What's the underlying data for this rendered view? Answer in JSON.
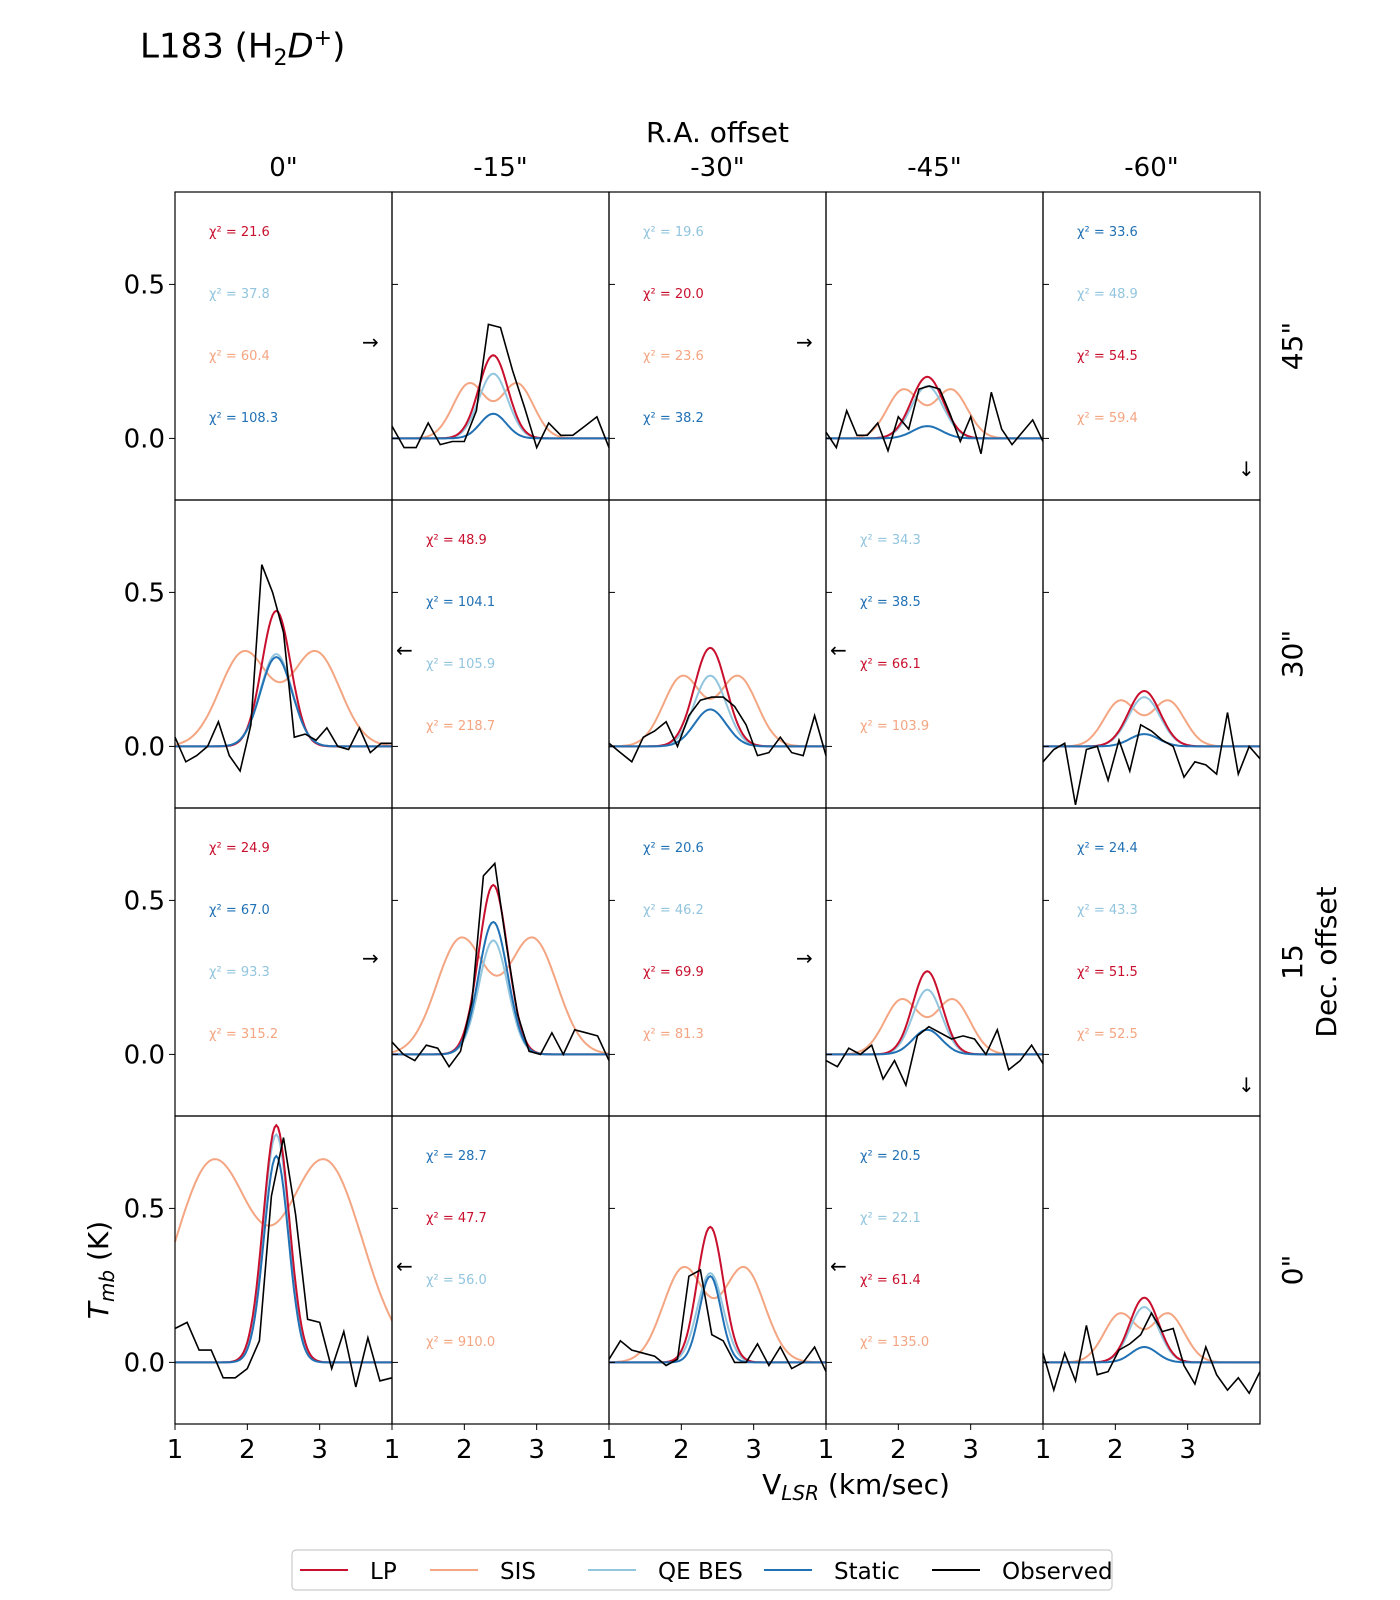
{
  "figure": {
    "title_base": "L183 (H",
    "title_sub": "2",
    "title_italic": "D",
    "title_sup": "+",
    "title_close": ")"
  },
  "chart_data": {
    "type": "line",
    "title": "L183 (H2D+)",
    "top_axis_title": "R.A. offset",
    "right_axis_title": "Dec. offset",
    "xlabel_main": "V",
    "xlabel_sub": "LSR",
    "xlabel_unit": " (km/sec)",
    "ylabel_main": "T",
    "ylabel_sub": "mb",
    "ylabel_unit": " (K)",
    "xlim": [
      1,
      4
    ],
    "ylim": [
      -0.2,
      0.8
    ],
    "xticks": [
      1,
      2,
      3
    ],
    "yticks": [
      0.0,
      0.5
    ],
    "ytick_labels": [
      "0.0",
      "0.5"
    ],
    "col_labels": [
      "0\"",
      "-15\"",
      "-30\"",
      "-45\"",
      "-60\""
    ],
    "row_labels": [
      "45\"",
      "30\"",
      "15",
      "0\""
    ],
    "chi_prefix": "χ² = ",
    "colors": {
      "LP": "#c8102e",
      "SIS": "#f4a582",
      "QE BES": "#92c5de",
      "Static": "#2171b5",
      "Observed": "#000000"
    },
    "legend": [
      "LP",
      "SIS",
      "QE BES",
      "Static",
      "Observed"
    ],
    "arrows": {
      "right": "→",
      "left": "←",
      "down": "↓"
    },
    "panels": [
      {
        "row": 0,
        "col": 0,
        "type": "chi",
        "chi": [
          [
            "LP",
            "21.6"
          ],
          [
            "QE BES",
            "37.8"
          ],
          [
            "SIS",
            "60.4"
          ],
          [
            "Static",
            "108.3"
          ]
        ],
        "arrow": "right"
      },
      {
        "row": 0,
        "col": 1,
        "type": "spec",
        "obs": [
          0.04,
          -0.03,
          -0.03,
          0.05,
          -0.02,
          -0.01,
          -0.01,
          0.09,
          0.37,
          0.36,
          0.22,
          0.1,
          -0.03,
          0.05,
          0.01,
          0.01,
          0.04,
          0.07,
          -0.03
        ],
        "fits": {
          "LP": {
            "amp": 0.27,
            "center": 2.4,
            "sigma": 0.2
          },
          "QE BES": {
            "amp": 0.21,
            "center": 2.4,
            "sigma": 0.2
          },
          "SIS": {
            "amp": 0.18,
            "center": 2.4,
            "sigma": 0.3,
            "double": true
          },
          "Static": {
            "amp": 0.08,
            "center": 2.4,
            "sigma": 0.18
          }
        }
      },
      {
        "row": 0,
        "col": 2,
        "type": "chi",
        "chi": [
          [
            "QE BES",
            "19.6"
          ],
          [
            "LP",
            "20.0"
          ],
          [
            "SIS",
            "23.6"
          ],
          [
            "Static",
            "38.2"
          ]
        ],
        "arrow": "right"
      },
      {
        "row": 0,
        "col": 3,
        "type": "spec",
        "obs": [
          0.02,
          -0.03,
          0.09,
          0.01,
          0.01,
          0.05,
          -0.04,
          0.07,
          0.03,
          0.16,
          0.17,
          0.16,
          0.08,
          -0.01,
          0.07,
          -0.05,
          0.15,
          0.03,
          -0.02,
          0.02,
          0.06,
          -0.01
        ],
        "fits": {
          "LP": {
            "amp": 0.2,
            "center": 2.4,
            "sigma": 0.22
          },
          "QE BES": {
            "amp": 0.17,
            "center": 2.4,
            "sigma": 0.22
          },
          "SIS": {
            "amp": 0.16,
            "center": 2.4,
            "sigma": 0.3,
            "double": true
          },
          "Static": {
            "amp": 0.04,
            "center": 2.4,
            "sigma": 0.2
          }
        }
      },
      {
        "row": 0,
        "col": 4,
        "type": "chi",
        "chi": [
          [
            "Static",
            "33.6"
          ],
          [
            "QE BES",
            "48.9"
          ],
          [
            "LP",
            "54.5"
          ],
          [
            "SIS",
            "59.4"
          ]
        ],
        "arrow": "down"
      },
      {
        "row": 1,
        "col": 0,
        "type": "spec",
        "obs": [
          0.03,
          -0.05,
          -0.03,
          0.0,
          0.08,
          -0.03,
          -0.08,
          0.07,
          0.59,
          0.5,
          0.37,
          0.03,
          0.04,
          0.02,
          0.06,
          0.0,
          -0.01,
          0.06,
          -0.02,
          0.01,
          0.01
        ],
        "fits": {
          "LP": {
            "amp": 0.44,
            "center": 2.4,
            "sigma": 0.2
          },
          "QE BES": {
            "amp": 0.3,
            "center": 2.4,
            "sigma": 0.22
          },
          "SIS": {
            "amp": 0.31,
            "center": 2.45,
            "sigma": 0.45,
            "double": true
          },
          "Static": {
            "amp": 0.29,
            "center": 2.4,
            "sigma": 0.22
          }
        }
      },
      {
        "row": 1,
        "col": 1,
        "type": "chi",
        "chi": [
          [
            "LP",
            "48.9"
          ],
          [
            "Static",
            "104.1"
          ],
          [
            "QE BES",
            "105.9"
          ],
          [
            "SIS",
            "218.7"
          ]
        ],
        "arrow": "left"
      },
      {
        "row": 1,
        "col": 2,
        "type": "spec",
        "obs": [
          0.01,
          -0.02,
          -0.05,
          0.03,
          0.05,
          0.08,
          0.0,
          0.1,
          0.15,
          0.16,
          0.16,
          0.13,
          0.07,
          -0.03,
          -0.02,
          0.03,
          -0.02,
          -0.03,
          0.1,
          -0.03
        ],
        "fits": {
          "LP": {
            "amp": 0.32,
            "center": 2.4,
            "sigma": 0.22
          },
          "QE BES": {
            "amp": 0.23,
            "center": 2.4,
            "sigma": 0.22
          },
          "SIS": {
            "amp": 0.23,
            "center": 2.4,
            "sigma": 0.35,
            "double": true
          },
          "Static": {
            "amp": 0.12,
            "center": 2.4,
            "sigma": 0.22
          }
        }
      },
      {
        "row": 1,
        "col": 3,
        "type": "chi",
        "chi": [
          [
            "QE BES",
            "34.3"
          ],
          [
            "Static",
            "38.5"
          ],
          [
            "LP",
            "66.1"
          ],
          [
            "SIS",
            "103.9"
          ]
        ],
        "arrow": "left"
      },
      {
        "row": 1,
        "col": 4,
        "type": "spec",
        "obs": [
          -0.05,
          -0.01,
          0.01,
          -0.19,
          -0.01,
          0.0,
          -0.11,
          0.02,
          -0.08,
          0.07,
          0.05,
          0.02,
          0.0,
          -0.1,
          -0.05,
          -0.06,
          -0.09,
          0.11,
          -0.09,
          0.0,
          -0.04
        ],
        "fits": {
          "LP": {
            "amp": 0.18,
            "center": 2.4,
            "sigma": 0.22
          },
          "QE BES": {
            "amp": 0.16,
            "center": 2.4,
            "sigma": 0.22
          },
          "SIS": {
            "amp": 0.15,
            "center": 2.4,
            "sigma": 0.3,
            "double": true
          },
          "Static": {
            "amp": 0.04,
            "center": 2.4,
            "sigma": 0.2
          }
        }
      },
      {
        "row": 2,
        "col": 0,
        "type": "chi",
        "chi": [
          [
            "LP",
            "24.9"
          ],
          [
            "Static",
            "67.0"
          ],
          [
            "QE BES",
            "93.3"
          ],
          [
            "SIS",
            "315.2"
          ]
        ],
        "arrow": "right"
      },
      {
        "row": 2,
        "col": 1,
        "type": "spec",
        "obs": [
          0.04,
          0.0,
          -0.02,
          0.03,
          0.02,
          -0.04,
          0.01,
          0.17,
          0.58,
          0.62,
          0.36,
          0.13,
          0.01,
          0.0,
          0.07,
          0.0,
          0.08,
          0.07,
          0.06,
          -0.02
        ],
        "fits": {
          "LP": {
            "amp": 0.55,
            "center": 2.4,
            "sigma": 0.2
          },
          "QE BES": {
            "amp": 0.37,
            "center": 2.4,
            "sigma": 0.2
          },
          "SIS": {
            "amp": 0.38,
            "center": 2.45,
            "sigma": 0.45,
            "double": true
          },
          "Static": {
            "amp": 0.43,
            "center": 2.4,
            "sigma": 0.2
          }
        }
      },
      {
        "row": 2,
        "col": 2,
        "type": "chi",
        "chi": [
          [
            "Static",
            "20.6"
          ],
          [
            "QE BES",
            "46.2"
          ],
          [
            "LP",
            "69.9"
          ],
          [
            "SIS",
            "81.3"
          ]
        ],
        "arrow": "right"
      },
      {
        "row": 2,
        "col": 3,
        "type": "spec",
        "obs": [
          -0.02,
          -0.04,
          0.02,
          0.0,
          0.03,
          -0.08,
          -0.02,
          -0.1,
          0.06,
          0.09,
          0.07,
          0.05,
          0.06,
          0.05,
          0.0,
          0.08,
          -0.05,
          -0.02,
          0.03,
          -0.03
        ],
        "fits": {
          "LP": {
            "amp": 0.27,
            "center": 2.4,
            "sigma": 0.2
          },
          "QE BES": {
            "amp": 0.21,
            "center": 2.4,
            "sigma": 0.2
          },
          "SIS": {
            "amp": 0.18,
            "center": 2.4,
            "sigma": 0.32,
            "double": true
          },
          "Static": {
            "amp": 0.08,
            "center": 2.4,
            "sigma": 0.2
          }
        }
      },
      {
        "row": 2,
        "col": 4,
        "type": "chi",
        "chi": [
          [
            "Static",
            "24.4"
          ],
          [
            "QE BES",
            "43.3"
          ],
          [
            "LP",
            "51.5"
          ],
          [
            "SIS",
            "52.5"
          ]
        ],
        "arrow": "down"
      },
      {
        "row": 3,
        "col": 0,
        "type": "spec",
        "obs": [
          0.11,
          0.13,
          0.04,
          0.04,
          -0.05,
          -0.05,
          -0.02,
          0.07,
          0.54,
          0.73,
          0.48,
          0.14,
          0.13,
          -0.02,
          0.1,
          -0.08,
          0.08,
          -0.06,
          -0.05
        ],
        "fits": {
          "LP": {
            "amp": 0.77,
            "center": 2.4,
            "sigma": 0.18
          },
          "QE BES": {
            "amp": 0.74,
            "center": 2.4,
            "sigma": 0.18
          },
          "SIS": {
            "amp": 0.66,
            "center": 2.3,
            "sigma": 0.7,
            "double": true
          },
          "Static": {
            "amp": 0.67,
            "center": 2.4,
            "sigma": 0.17
          }
        }
      },
      {
        "row": 3,
        "col": 1,
        "type": "chi",
        "chi": [
          [
            "Static",
            "28.7"
          ],
          [
            "LP",
            "47.7"
          ],
          [
            "QE BES",
            "56.0"
          ],
          [
            "SIS",
            "910.0"
          ]
        ],
        "arrow": "left"
      },
      {
        "row": 3,
        "col": 2,
        "type": "spec",
        "obs": [
          0.01,
          0.07,
          0.04,
          0.03,
          0.02,
          -0.01,
          0.01,
          0.28,
          0.3,
          0.09,
          0.07,
          0.0,
          0.0,
          0.06,
          -0.01,
          0.05,
          -0.02,
          0.0,
          0.05,
          -0.03
        ],
        "fits": {
          "LP": {
            "amp": 0.44,
            "center": 2.4,
            "sigma": 0.18
          },
          "QE BES": {
            "amp": 0.29,
            "center": 2.4,
            "sigma": 0.18
          },
          "SIS": {
            "amp": 0.31,
            "center": 2.45,
            "sigma": 0.38,
            "double": true
          },
          "Static": {
            "amp": 0.28,
            "center": 2.4,
            "sigma": 0.15
          }
        }
      },
      {
        "row": 3,
        "col": 3,
        "type": "chi",
        "chi": [
          [
            "Static",
            "20.5"
          ],
          [
            "QE BES",
            "22.1"
          ],
          [
            "LP",
            "61.4"
          ],
          [
            "SIS",
            "135.0"
          ]
        ],
        "arrow": "left"
      },
      {
        "row": 3,
        "col": 4,
        "type": "spec",
        "obs": [
          0.03,
          -0.09,
          0.03,
          -0.06,
          0.12,
          -0.04,
          -0.03,
          0.04,
          0.06,
          0.09,
          0.16,
          0.1,
          0.11,
          -0.01,
          -0.07,
          0.05,
          -0.04,
          -0.09,
          -0.05,
          -0.1,
          -0.03
        ],
        "fits": {
          "LP": {
            "amp": 0.21,
            "center": 2.4,
            "sigma": 0.2
          },
          "QE BES": {
            "amp": 0.18,
            "center": 2.4,
            "sigma": 0.2
          },
          "SIS": {
            "amp": 0.16,
            "center": 2.4,
            "sigma": 0.3,
            "double": true
          },
          "Static": {
            "amp": 0.05,
            "center": 2.4,
            "sigma": 0.18
          }
        }
      }
    ]
  }
}
